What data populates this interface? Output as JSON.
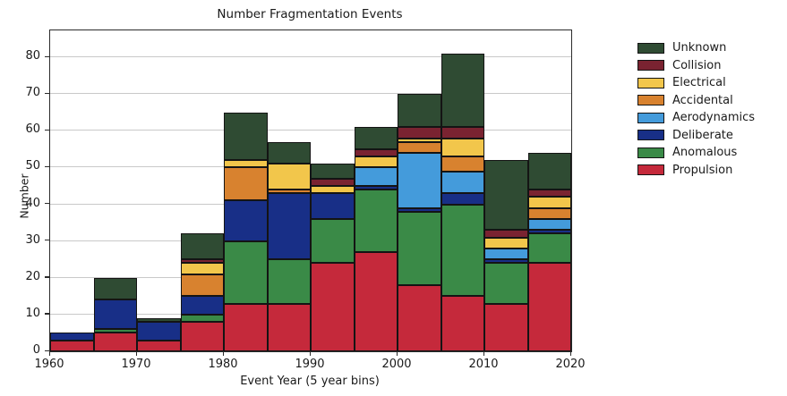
{
  "title": "Number Fragmentation Events",
  "axes": {
    "xlabel": "Event Year (5 year bins)",
    "ylabel": "Number",
    "y_ticks": [
      0,
      10,
      20,
      30,
      40,
      50,
      60,
      70,
      80
    ],
    "x_ticks": [
      1960,
      1970,
      1980,
      1990,
      2000,
      2010,
      2020
    ],
    "x_range": [
      1960,
      2020
    ],
    "ylim": [
      0,
      87.3
    ],
    "grid": "horizontal"
  },
  "legend": {
    "position": "upper right outside",
    "entries": [
      {
        "label": "Unknown",
        "color": "#2F4B33"
      },
      {
        "label": "Collision",
        "color": "#7A2331"
      },
      {
        "label": "Electrical",
        "color": "#F2C64B"
      },
      {
        "label": "Accidental",
        "color": "#D8822F"
      },
      {
        "label": "Aerodynamics",
        "color": "#449BDB"
      },
      {
        "label": "Deliberate",
        "color": "#182F87"
      },
      {
        "label": "Anomalous",
        "color": "#3A8A47"
      },
      {
        "label": "Propulsion",
        "color": "#C5293B"
      }
    ]
  },
  "chart_data": {
    "type": "bar",
    "stacked": true,
    "title": "Number Fragmentation Events",
    "xlabel": "Event Year (5 year bins)",
    "ylabel": "Number",
    "bin_width_years": 5,
    "bin_edges": [
      1960,
      1965,
      1970,
      1975,
      1980,
      1985,
      1990,
      1995,
      2000,
      2005,
      2010,
      2015,
      2020
    ],
    "categories": [
      "1960-1965",
      "1965-1970",
      "1970-1975",
      "1975-1980",
      "1980-1985",
      "1985-1990",
      "1990-1995",
      "1995-2000",
      "2000-2005",
      "2005-2010",
      "2010-2015",
      "2015-2020"
    ],
    "series": [
      {
        "name": "Propulsion",
        "color": "#C5293B",
        "values": [
          3,
          5,
          3,
          8,
          13,
          13,
          24,
          27,
          18,
          15,
          13,
          24
        ]
      },
      {
        "name": "Anomalous",
        "color": "#3A8A47",
        "values": [
          0,
          1,
          0,
          2,
          17,
          12,
          12,
          17,
          20,
          25,
          11,
          8
        ]
      },
      {
        "name": "Deliberate",
        "color": "#182F87",
        "values": [
          2,
          8,
          5,
          5,
          11,
          18,
          7,
          1,
          1,
          3,
          1,
          1
        ]
      },
      {
        "name": "Aerodynamics",
        "color": "#449BDB",
        "values": [
          0,
          0,
          0,
          0,
          0,
          0,
          0,
          5,
          15,
          6,
          3,
          3
        ]
      },
      {
        "name": "Accidental",
        "color": "#D8822F",
        "values": [
          0,
          0,
          0,
          6,
          9,
          1,
          0,
          0,
          3,
          4,
          0,
          3
        ]
      },
      {
        "name": "Electrical",
        "color": "#F2C64B",
        "values": [
          0,
          0,
          0,
          3,
          2,
          7,
          2,
          3,
          1,
          5,
          3,
          3
        ]
      },
      {
        "name": "Collision",
        "color": "#7A2331",
        "values": [
          0,
          0,
          0,
          1,
          0,
          0,
          2,
          2,
          3,
          3,
          2,
          2
        ]
      },
      {
        "name": "Unknown",
        "color": "#2F4B33",
        "values": [
          0,
          6,
          1,
          7,
          13,
          6,
          4,
          6,
          9,
          20,
          19,
          10
        ]
      }
    ],
    "totals": [
      5,
      20,
      9,
      32,
      65,
      57,
      51,
      61,
      70,
      81,
      52,
      54
    ],
    "stack_order": "bottom-to-top",
    "edge_color": "#141414"
  }
}
